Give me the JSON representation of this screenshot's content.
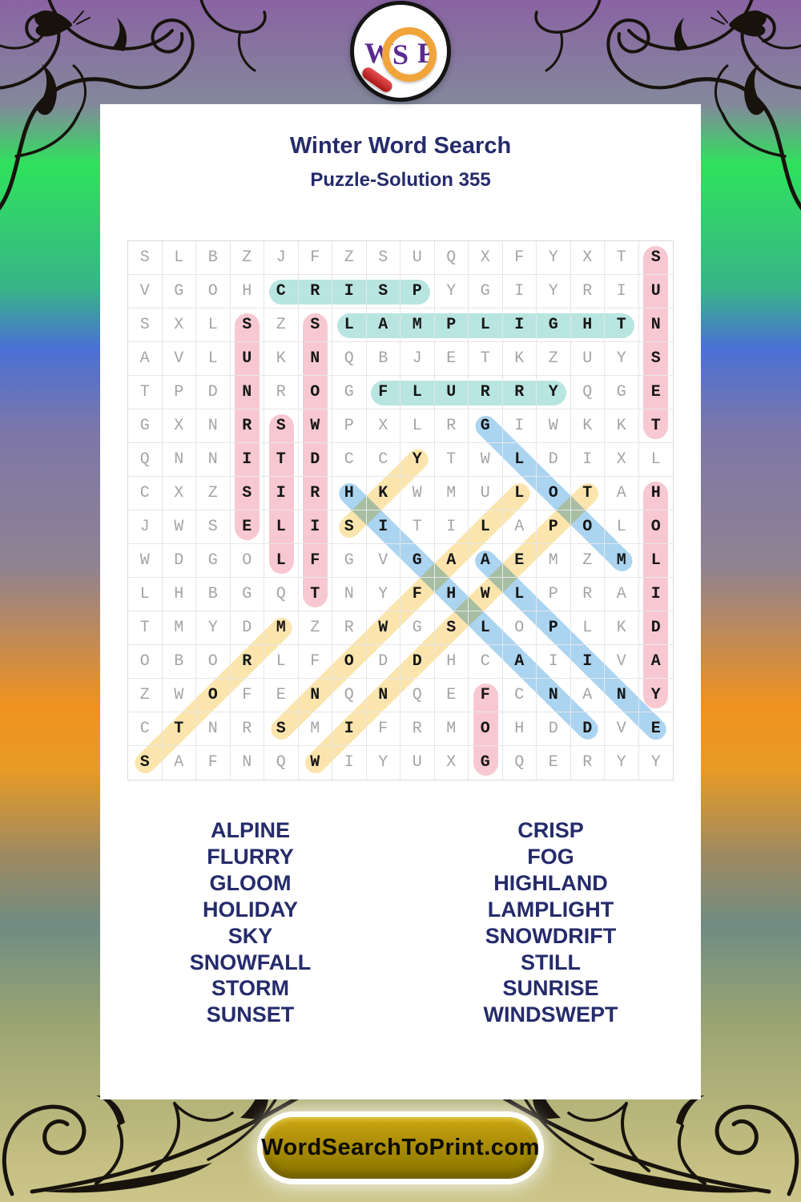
{
  "logo": {
    "letters": [
      "W",
      "S",
      "P"
    ]
  },
  "header": {
    "title": "Winter Word Search",
    "subtitle": "Puzzle-Solution 355"
  },
  "grid": {
    "rows": 16,
    "cols": 16,
    "letters": [
      "SLBZJFZSUQXFYXTS",
      "VGOHCRISPYGIYRIU",
      "SXLSZSLAMPLIGHTN",
      "AVLUKNQBJETKZUYS",
      "TPDNROGFLURRYQGE",
      "GXNRSWPXLRGIWKKT",
      "QNNITDCCYTWLDIXL",
      "CXZSIRHKWMULOTAH",
      "JWSELISITILAPOLO",
      "WDGOLFGVGAAEMZML",
      "LHBGQTNYFHWLPRAI",
      "TMYDMZRWGSLOPLKD",
      "OBORLFODDHCAIIVA",
      "ZWOFENQNQEFCNANY",
      "CTNRSMIFRMOHDDVE",
      "SAFNQWIYUXGQERYY"
    ]
  },
  "solutions": [
    {
      "word": "SUNSET",
      "color": "pink",
      "start": [
        1,
        16
      ],
      "end": [
        6,
        16
      ]
    },
    {
      "word": "CRISP",
      "color": "teal",
      "start": [
        2,
        5
      ],
      "end": [
        2,
        9
      ]
    },
    {
      "word": "SUNRISE",
      "color": "pink",
      "start": [
        3,
        4
      ],
      "end": [
        9,
        4
      ]
    },
    {
      "word": "SNOWDRIFT",
      "color": "pink",
      "start": [
        3,
        6
      ],
      "end": [
        11,
        6
      ]
    },
    {
      "word": "LAMPLIGHT",
      "color": "teal",
      "start": [
        3,
        7
      ],
      "end": [
        3,
        15
      ]
    },
    {
      "word": "FLURRY",
      "color": "teal",
      "start": [
        5,
        8
      ],
      "end": [
        5,
        13
      ]
    },
    {
      "word": "STILL",
      "color": "pink",
      "start": [
        6,
        5
      ],
      "end": [
        10,
        5
      ]
    },
    {
      "word": "GLOOM",
      "color": "blue",
      "start": [
        6,
        11
      ],
      "end": [
        10,
        15
      ]
    },
    {
      "word": "SKY",
      "color": "yellow",
      "start": [
        9,
        7
      ],
      "end": [
        7,
        9
      ]
    },
    {
      "word": "HIGHLAND",
      "color": "blue",
      "start": [
        8,
        7
      ],
      "end": [
        15,
        14
      ]
    },
    {
      "word": "HOLIDAY",
      "color": "pink",
      "start": [
        8,
        16
      ],
      "end": [
        14,
        16
      ]
    },
    {
      "word": "ALPINE",
      "color": "blue",
      "start": [
        10,
        11
      ],
      "end": [
        15,
        16
      ]
    },
    {
      "word": "SNOWFALL",
      "color": "yellow",
      "start": [
        15,
        5
      ],
      "end": [
        8,
        12
      ]
    },
    {
      "word": "STORM",
      "color": "yellow",
      "start": [
        16,
        1
      ],
      "end": [
        12,
        5
      ]
    },
    {
      "word": "WINDSWEPT",
      "color": "yellow",
      "start": [
        16,
        6
      ],
      "end": [
        8,
        14
      ]
    },
    {
      "word": "FOG",
      "color": "pink",
      "start": [
        14,
        11
      ],
      "end": [
        16,
        11
      ]
    }
  ],
  "word_lists": {
    "left": [
      "ALPINE",
      "FLURRY",
      "GLOOM",
      "HOLIDAY",
      "SKY",
      "SNOWFALL",
      "STORM",
      "SUNSET"
    ],
    "right": [
      "CRISP",
      "FOG",
      "HIGHLAND",
      "LAMPLIGHT",
      "SNOWDRIFT",
      "STILL",
      "SUNRISE",
      "WINDSWEPT"
    ]
  },
  "footer": {
    "site": "WordSearchToPrint.com"
  },
  "palette": {
    "teal": "#b9e5e1",
    "pink": "#f8c8d2",
    "blue": "#abd4f0",
    "yellow": "#fbe5ad",
    "navy": "#252b6b",
    "gold": "#a98f00"
  }
}
